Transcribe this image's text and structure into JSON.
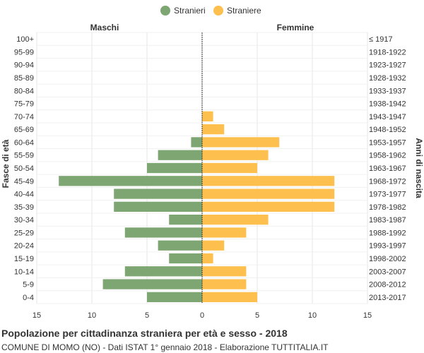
{
  "chart_data": {
    "type": "bar",
    "orientation": "horizontal-pyramid",
    "title": "Popolazione per cittadinanza straniera per età e sesso - 2018",
    "subtitle": "COMUNE DI MOMO (NO) - Dati ISTAT 1° gennaio 2018 - Elaborazione TUTTITALIA.IT",
    "left_header": "Maschi",
    "right_header": "Femmine",
    "ylabel_left": "Fasce di età",
    "ylabel_right": "Anni di nascita",
    "xlim": [
      -15,
      15
    ],
    "xticks": [
      -15,
      -10,
      -5,
      0,
      5,
      10,
      15
    ],
    "xtick_labels": [
      "15",
      "10",
      "5",
      "0",
      "5",
      "10",
      "15"
    ],
    "grid": true,
    "legend_position": "top-center",
    "categories": [
      "100+",
      "95-99",
      "90-94",
      "85-89",
      "80-84",
      "75-79",
      "70-74",
      "65-69",
      "60-64",
      "55-59",
      "50-54",
      "45-49",
      "40-44",
      "35-39",
      "30-34",
      "25-29",
      "20-24",
      "15-19",
      "10-14",
      "5-9",
      "0-4"
    ],
    "birth_years": [
      "≤ 1917",
      "1918-1922",
      "1923-1927",
      "1928-1932",
      "1933-1937",
      "1938-1942",
      "1943-1947",
      "1948-1952",
      "1953-1957",
      "1958-1962",
      "1963-1967",
      "1968-1972",
      "1973-1977",
      "1978-1982",
      "1983-1987",
      "1988-1992",
      "1993-1997",
      "1998-2002",
      "2003-2007",
      "2008-2012",
      "2013-2017"
    ],
    "series": [
      {
        "name": "Stranieri",
        "side": "left",
        "color": "#7ea673",
        "values": [
          0,
          0,
          0,
          0,
          0,
          0,
          0,
          0,
          1,
          4,
          5,
          13,
          8,
          8,
          3,
          7,
          4,
          3,
          7,
          9,
          5
        ]
      },
      {
        "name": "Straniere",
        "side": "right",
        "color": "#fdc04e",
        "values": [
          0,
          0,
          0,
          0,
          0,
          0,
          1,
          2,
          7,
          6,
          5,
          12,
          12,
          12,
          6,
          4,
          2,
          1,
          4,
          4,
          5
        ]
      }
    ]
  }
}
